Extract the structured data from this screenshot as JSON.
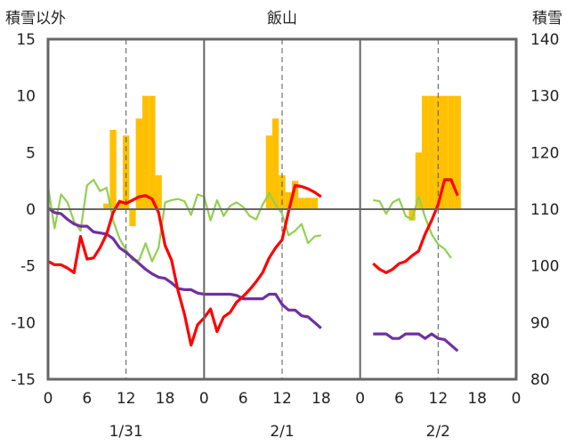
{
  "chart_data": {
    "type": "bar+line",
    "title": "飯山",
    "ylabel_left": "積雪以外",
    "ylabel_right": "積雪",
    "ylim_left": [
      -15,
      15
    ],
    "ylim_right": [
      80,
      140
    ],
    "yticks_left": [
      "15",
      "10",
      "5",
      "0",
      "-5",
      "-10",
      "-15"
    ],
    "yticks_right": [
      "140",
      "130",
      "120",
      "110",
      "100",
      "90",
      "80"
    ],
    "day_labels": [
      "1/31",
      "2/1",
      "2/2"
    ],
    "xtick_labels": [
      "0",
      "6",
      "12",
      "18",
      "0",
      "6",
      "12",
      "18",
      "0",
      "6",
      "12",
      "18",
      "0"
    ],
    "grid": "dashed vertical at 12:00 each day",
    "colors": {
      "snow_depth": "#FFC000",
      "temperature": "#FF0000",
      "pressure": "#7030A0",
      "wind": "#92D050"
    },
    "snow_depth": [
      [
        9,
        111
      ],
      [
        10,
        124
      ],
      [
        11,
        111
      ],
      [
        12,
        123
      ],
      [
        13,
        107
      ],
      [
        14,
        126
      ],
      [
        15,
        130
      ],
      [
        16,
        130
      ],
      [
        17,
        116
      ],
      [
        34,
        123
      ],
      [
        35,
        126
      ],
      [
        36,
        116
      ],
      [
        37,
        113
      ],
      [
        38,
        115
      ],
      [
        39,
        112
      ],
      [
        40,
        112
      ],
      [
        41,
        112
      ],
      [
        56,
        108
      ],
      [
        57,
        120
      ],
      [
        58,
        130
      ],
      [
        59,
        130
      ],
      [
        60,
        130
      ],
      [
        61,
        130
      ],
      [
        62,
        130
      ],
      [
        63,
        130
      ]
    ],
    "temperature": [
      [
        0,
        -4.6
      ],
      [
        1,
        -4.9
      ],
      [
        2,
        -4.9
      ],
      [
        3,
        -5.2
      ],
      [
        4,
        -5.6
      ],
      [
        5,
        -2.4
      ],
      [
        6,
        -4.4
      ],
      [
        7,
        -4.3
      ],
      [
        8,
        -3.4
      ],
      [
        9,
        -2.2
      ],
      [
        10,
        -0.3
      ],
      [
        11,
        0.7
      ],
      [
        12,
        0.5
      ],
      [
        13,
        0.8
      ],
      [
        14,
        1.1
      ],
      [
        15,
        1.2
      ],
      [
        16,
        0.9
      ],
      [
        17,
        -0.3
      ],
      [
        18,
        -3.2
      ],
      [
        19,
        -4.5
      ],
      [
        20,
        -7.2
      ],
      [
        21,
        -9.3
      ],
      [
        22,
        -12.0
      ],
      [
        23,
        -10.2
      ],
      [
        24,
        -9.6
      ],
      [
        25,
        -8.8
      ],
      [
        26,
        -10.8
      ],
      [
        27,
        -9.5
      ],
      [
        28,
        -9.1
      ],
      [
        29,
        -8.2
      ],
      [
        30,
        -7.7
      ],
      [
        31,
        -7.1
      ],
      [
        32,
        -6.4
      ],
      [
        33,
        -5.6
      ],
      [
        34,
        -4.3
      ],
      [
        35,
        -3.4
      ],
      [
        36,
        -2.7
      ],
      [
        37,
        -0.2
      ],
      [
        38,
        2.1
      ],
      [
        39,
        2.0
      ],
      [
        40,
        1.8
      ],
      [
        41,
        1.5
      ],
      [
        42,
        1.1
      ]
    ],
    "temperature_day3": [
      [
        50,
        -4.8
      ],
      [
        51,
        -5.3
      ],
      [
        52,
        -5.6
      ],
      [
        53,
        -5.3
      ],
      [
        54,
        -4.8
      ],
      [
        55,
        -4.6
      ],
      [
        56,
        -4.1
      ],
      [
        57,
        -3.7
      ],
      [
        58,
        -2.2
      ],
      [
        59,
        -1.0
      ],
      [
        60,
        0.4
      ],
      [
        61,
        2.6
      ],
      [
        62,
        2.6
      ],
      [
        63,
        1.2
      ]
    ],
    "pressure": [
      [
        0,
        0.1
      ],
      [
        1,
        -0.3
      ],
      [
        2,
        -0.4
      ],
      [
        3,
        -0.9
      ],
      [
        4,
        -1.3
      ],
      [
        5,
        -1.5
      ],
      [
        6,
        -1.5
      ],
      [
        7,
        -2.0
      ],
      [
        8,
        -2.1
      ],
      [
        9,
        -2.2
      ],
      [
        10,
        -2.6
      ],
      [
        11,
        -3.4
      ],
      [
        12,
        -3.8
      ],
      [
        13,
        -4.3
      ],
      [
        14,
        -4.8
      ],
      [
        15,
        -5.3
      ],
      [
        16,
        -5.7
      ],
      [
        17,
        -6.0
      ],
      [
        18,
        -6.1
      ],
      [
        19,
        -6.5
      ],
      [
        20,
        -7.0
      ],
      [
        21,
        -7.1
      ],
      [
        22,
        -7.1
      ],
      [
        23,
        -7.4
      ],
      [
        24,
        -7.5
      ],
      [
        25,
        -7.5
      ],
      [
        26,
        -7.5
      ],
      [
        27,
        -7.5
      ],
      [
        28,
        -7.5
      ],
      [
        29,
        -7.6
      ],
      [
        30,
        -7.9
      ],
      [
        31,
        -7.9
      ],
      [
        32,
        -7.9
      ],
      [
        33,
        -7.9
      ],
      [
        34,
        -7.5
      ],
      [
        35,
        -7.5
      ],
      [
        36,
        -8.4
      ],
      [
        37,
        -8.9
      ],
      [
        38,
        -8.9
      ],
      [
        39,
        -9.4
      ],
      [
        40,
        -9.5
      ],
      [
        41,
        -10.0
      ],
      [
        42,
        -10.5
      ]
    ],
    "pressure_day3": [
      [
        50,
        -11.0
      ],
      [
        51,
        -11.0
      ],
      [
        52,
        -11.0
      ],
      [
        53,
        -11.4
      ],
      [
        54,
        -11.4
      ],
      [
        55,
        -11.0
      ],
      [
        56,
        -11.0
      ],
      [
        57,
        -11.0
      ],
      [
        58,
        -11.4
      ],
      [
        59,
        -11.0
      ],
      [
        60,
        -11.4
      ],
      [
        61,
        -11.5
      ],
      [
        62,
        -12.0
      ],
      [
        63,
        -12.5
      ]
    ],
    "wind": [
      [
        0,
        2.0
      ],
      [
        1,
        -1.7
      ],
      [
        2,
        1.3
      ],
      [
        3,
        0.6
      ],
      [
        4,
        -1.1
      ],
      [
        5,
        -1.9
      ],
      [
        6,
        2.1
      ],
      [
        7,
        2.6
      ],
      [
        8,
        1.6
      ],
      [
        9,
        1.9
      ],
      [
        10,
        -1.0
      ],
      [
        11,
        -2.6
      ],
      [
        12,
        -3.6
      ],
      [
        13,
        -4.5
      ],
      [
        14,
        -4.5
      ],
      [
        15,
        -3.0
      ],
      [
        16,
        -4.6
      ],
      [
        17,
        -3.4
      ],
      [
        18,
        0.6
      ],
      [
        19,
        0.8
      ],
      [
        20,
        0.9
      ],
      [
        21,
        0.7
      ],
      [
        22,
        -0.5
      ],
      [
        23,
        1.3
      ],
      [
        24,
        1.1
      ],
      [
        25,
        -1.0
      ],
      [
        26,
        0.8
      ],
      [
        27,
        -0.6
      ],
      [
        28,
        0.3
      ],
      [
        29,
        0.6
      ],
      [
        30,
        0.2
      ],
      [
        31,
        -0.6
      ],
      [
        32,
        -0.9
      ],
      [
        33,
        0.4
      ],
      [
        34,
        1.4
      ],
      [
        35,
        0.4
      ],
      [
        36,
        -0.4
      ],
      [
        37,
        -2.3
      ],
      [
        38,
        -1.9
      ],
      [
        39,
        -1.3
      ],
      [
        40,
        -3.0
      ],
      [
        41,
        -2.4
      ],
      [
        42,
        -2.3
      ]
    ],
    "wind_day3": [
      [
        50,
        0.8
      ],
      [
        51,
        0.7
      ],
      [
        52,
        -0.4
      ],
      [
        53,
        0.6
      ],
      [
        54,
        0.9
      ],
      [
        55,
        -0.6
      ],
      [
        56,
        -0.9
      ],
      [
        57,
        1.1
      ],
      [
        58,
        -0.7
      ],
      [
        59,
        -2.2
      ],
      [
        60,
        -3.1
      ],
      [
        61,
        -3.5
      ],
      [
        62,
        -4.3
      ]
    ]
  }
}
